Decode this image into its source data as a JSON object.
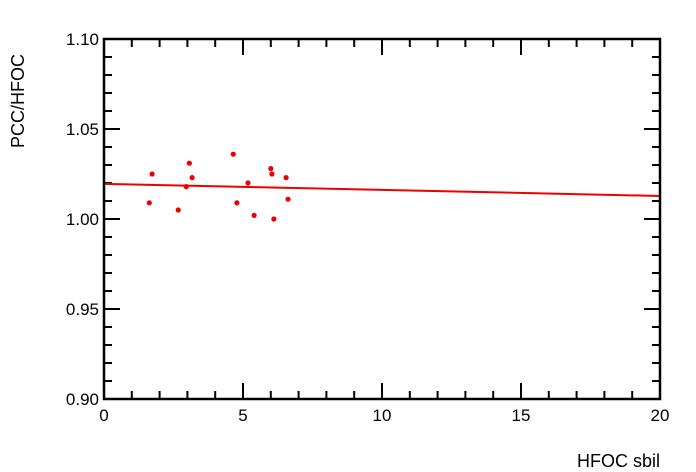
{
  "chart_data": {
    "type": "scatter",
    "title": "",
    "xlabel": "HFOC  sbil",
    "ylabel": "PCC/HFOC",
    "xlim": [
      0,
      20
    ],
    "ylim": [
      0.9,
      1.1
    ],
    "x_ticks": [
      {
        "value": 0,
        "label": "0"
      },
      {
        "value": 5,
        "label": "5"
      },
      {
        "value": 10,
        "label": "10"
      },
      {
        "value": 15,
        "label": "15"
      },
      {
        "value": 20,
        "label": "20"
      }
    ],
    "y_ticks": [
      {
        "value": 0.9,
        "label": "0.90"
      },
      {
        "value": 0.95,
        "label": "0.95"
      },
      {
        "value": 1.0,
        "label": "1.00"
      },
      {
        "value": 1.05,
        "label": "1.05"
      },
      {
        "value": 1.1,
        "label": "1.10"
      }
    ],
    "grid": false,
    "legend": "none",
    "series": [
      {
        "color": "#ee0000",
        "points": [
          {
            "x": 1.63,
            "y": 1.009
          },
          {
            "x": 1.73,
            "y": 1.025
          },
          {
            "x": 2.67,
            "y": 1.005
          },
          {
            "x": 2.96,
            "y": 1.018
          },
          {
            "x": 3.07,
            "y": 1.031
          },
          {
            "x": 3.17,
            "y": 1.023
          },
          {
            "x": 4.65,
            "y": 1.036
          },
          {
            "x": 4.78,
            "y": 1.009
          },
          {
            "x": 5.18,
            "y": 1.02
          },
          {
            "x": 5.4,
            "y": 1.002
          },
          {
            "x": 6.0,
            "y": 1.028
          },
          {
            "x": 6.04,
            "y": 1.025
          },
          {
            "x": 6.11,
            "y": 1.0
          },
          {
            "x": 6.55,
            "y": 1.023
          },
          {
            "x": 6.62,
            "y": 1.011
          }
        ]
      }
    ],
    "fit_line": {
      "color": "#ee0000",
      "points": [
        {
          "x": 0,
          "y": 1.0195
        },
        {
          "x": 20,
          "y": 1.0128
        }
      ]
    }
  }
}
